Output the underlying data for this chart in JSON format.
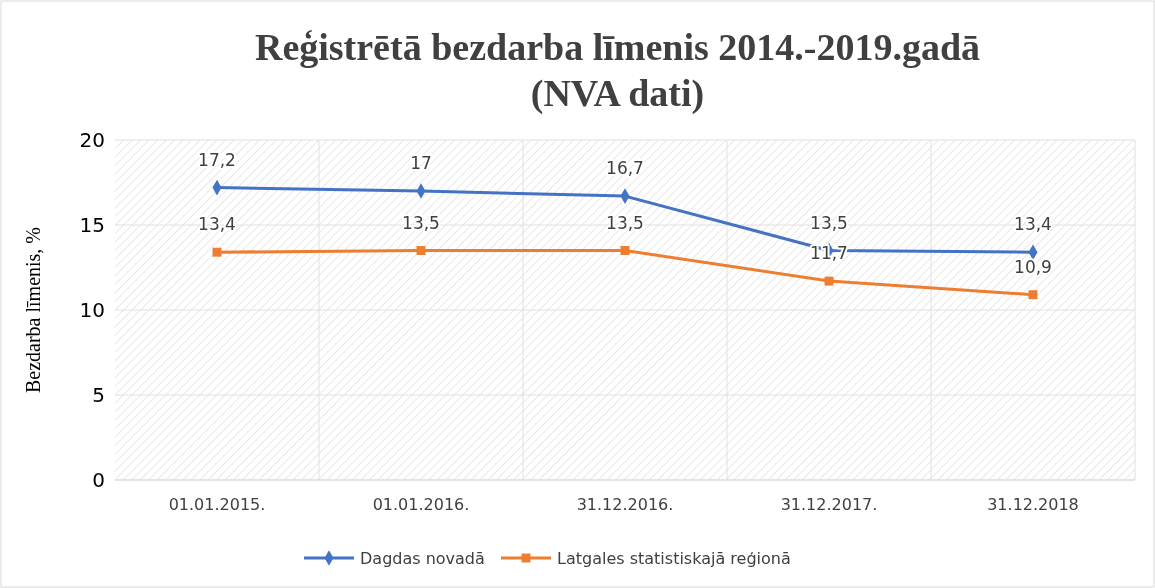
{
  "chart_data": {
    "type": "line",
    "title": "Reģistrētā bezdarba līmenis 2014.-2019.gadā\n(NVA dati)",
    "ylabel": "Bezdarba līmenis, %",
    "categories": [
      "01.01.2015.",
      "01.01.2016.",
      "31.12.2016.",
      "31.12.2017.",
      "31.12.2018"
    ],
    "series": [
      {
        "name": "Dagdas novadā",
        "color": "#4472c4",
        "marker": "diamond",
        "values": [
          17.2,
          17,
          16.7,
          13.5,
          13.4
        ],
        "value_labels": [
          "17,2",
          "17",
          "16,7",
          "13,5",
          "13,4"
        ]
      },
      {
        "name": "Latgales statistiskajā reģionā",
        "color": "#ed7d31",
        "marker": "square",
        "values": [
          13.4,
          13.5,
          13.5,
          11.7,
          10.9
        ],
        "value_labels": [
          "13,4",
          "13,5",
          "13,5",
          "11,7",
          "10,9"
        ]
      }
    ],
    "ylim": [
      0,
      20
    ],
    "yticks": [
      0,
      5,
      10,
      15,
      20
    ],
    "grid": true,
    "legend": "bottom"
  }
}
